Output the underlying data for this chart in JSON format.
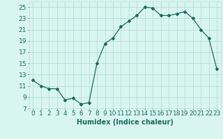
{
  "x": [
    0,
    1,
    2,
    3,
    4,
    5,
    6,
    7,
    8,
    9,
    10,
    11,
    12,
    13,
    14,
    15,
    16,
    17,
    18,
    19,
    20,
    21,
    22,
    23
  ],
  "y": [
    12.0,
    11.0,
    10.5,
    10.5,
    8.5,
    8.8,
    7.8,
    8.0,
    15.0,
    18.5,
    19.5,
    21.5,
    22.5,
    23.5,
    25.0,
    24.8,
    23.5,
    23.5,
    23.8,
    24.2,
    23.0,
    21.0,
    19.5,
    14.0
  ],
  "line_color": "#1a6b5e",
  "marker": "D",
  "marker_size": 2,
  "bg_color": "#d9f5f0",
  "grid_color": "#b8ddd6",
  "xlabel": "Humidex (Indice chaleur)",
  "xlim": [
    -0.5,
    23.5
  ],
  "ylim": [
    7,
    26
  ],
  "yticks": [
    7,
    9,
    11,
    13,
    15,
    17,
    19,
    21,
    23,
    25
  ],
  "xlabel_fontsize": 7,
  "tick_fontsize": 6.5
}
